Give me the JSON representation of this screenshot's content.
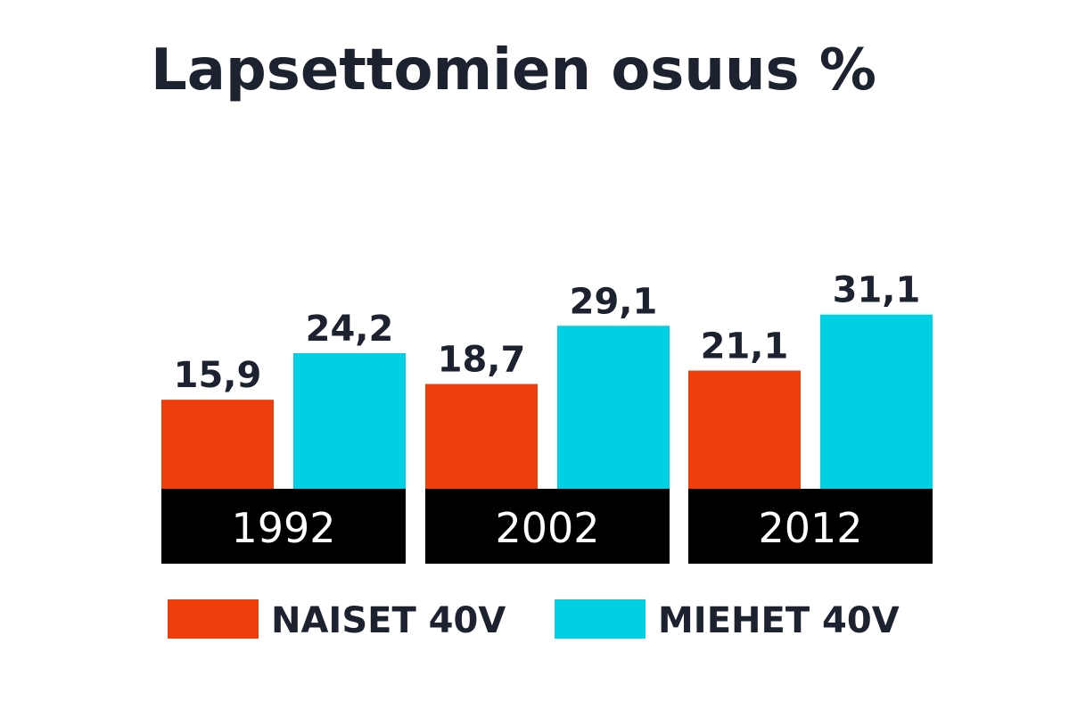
{
  "chart_data": {
    "type": "bar",
    "title": "Lapsettomien osuus %",
    "categories": [
      "1992",
      "2002",
      "2012"
    ],
    "series": [
      {
        "name": "NAISET 40V",
        "values": [
          15.9,
          18.7,
          21.1
        ],
        "labels": [
          "15,9",
          "18,7",
          "21,1"
        ],
        "color": "#ee3d0b"
      },
      {
        "name": "MIEHET 40V",
        "values": [
          24.2,
          29.1,
          31.1
        ],
        "labels": [
          "24,2",
          "29,1",
          "31,1"
        ],
        "color": "#00d0e3"
      }
    ],
    "xlabel": "",
    "ylabel": "",
    "ylim": [
      0,
      35
    ],
    "grid": false,
    "legend_position": "bottom",
    "category_band_color": "#000000",
    "category_text_color": "#ffffff",
    "text_color": "#1c2230"
  }
}
